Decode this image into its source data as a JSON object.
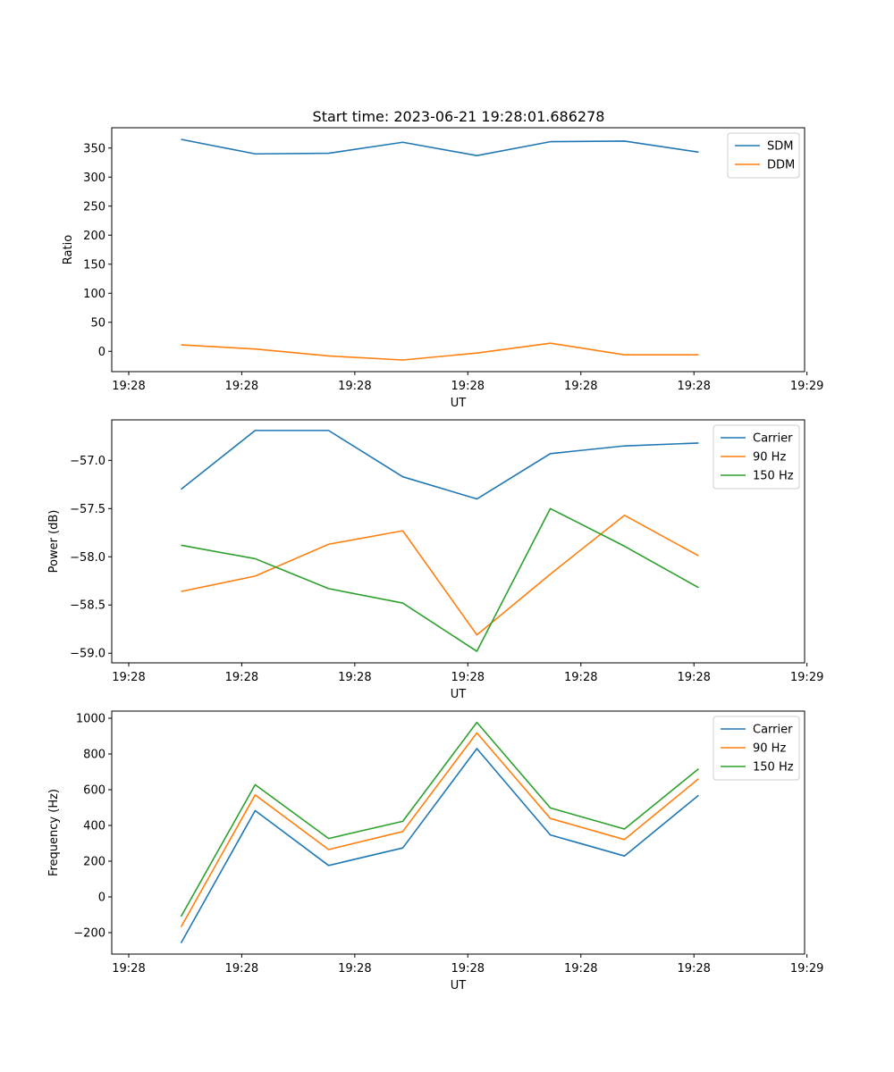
{
  "title": "Start time: 2023-06-21 19:28:01.686278",
  "colors": {
    "blue": "#1f77b4",
    "orange": "#ff7f0e",
    "green": "#2ca02c"
  },
  "chart_data": [
    {
      "type": "line",
      "title": "Start time: 2023-06-21 19:28:01.686278",
      "xlabel": "UT",
      "ylabel": "Ratio",
      "x_tick_labels": [
        "19:28",
        "19:28",
        "19:28",
        "19:28",
        "19:28",
        "19:28",
        "19:29"
      ],
      "y_ticks": [
        0,
        50,
        100,
        150,
        200,
        250,
        300,
        350
      ],
      "ylim": [
        -35,
        385
      ],
      "legend": "top-right",
      "x_positions_fraction": [
        0.1,
        0.207,
        0.313,
        0.42,
        0.527,
        0.633,
        0.74,
        0.847
      ],
      "series": [
        {
          "name": "SDM",
          "color": "#1f77b4",
          "values": [
            365,
            340,
            341,
            360,
            337,
            361,
            362,
            343
          ]
        },
        {
          "name": "DDM",
          "color": "#ff7f0e",
          "values": [
            11,
            4,
            -8,
            -15,
            -3,
            14,
            -6,
            -6
          ]
        }
      ]
    },
    {
      "type": "line",
      "xlabel": "UT",
      "ylabel": "Power (dB)",
      "x_tick_labels": [
        "19:28",
        "19:28",
        "19:28",
        "19:28",
        "19:28",
        "19:28",
        "19:29"
      ],
      "y_ticks": [
        -57.0,
        -57.5,
        -58.0,
        -58.5,
        -59.0
      ],
      "ylim": [
        -59.1,
        -56.58
      ],
      "legend": "top-right",
      "x_positions_fraction": [
        0.1,
        0.207,
        0.313,
        0.42,
        0.527,
        0.633,
        0.74,
        0.847
      ],
      "series": [
        {
          "name": "Carrier",
          "color": "#1f77b4",
          "values": [
            -57.3,
            -56.69,
            -56.69,
            -57.17,
            -57.4,
            -56.93,
            -56.85,
            -56.82
          ]
        },
        {
          "name": "90 Hz",
          "color": "#ff7f0e",
          "values": [
            -58.36,
            -58.2,
            -57.87,
            -57.73,
            -58.81,
            -58.18,
            -57.57,
            -57.99
          ]
        },
        {
          "name": "150 Hz",
          "color": "#2ca02c",
          "values": [
            -57.88,
            -58.02,
            -58.33,
            -58.48,
            -58.98,
            -57.5,
            -57.89,
            -58.32
          ]
        }
      ]
    },
    {
      "type": "line",
      "xlabel": "UT",
      "ylabel": "Frequency (Hz)",
      "x_tick_labels": [
        "19:28",
        "19:28",
        "19:28",
        "19:28",
        "19:28",
        "19:28",
        "19:29"
      ],
      "y_ticks": [
        -200,
        0,
        200,
        400,
        600,
        800,
        1000
      ],
      "ylim": [
        -320,
        1040
      ],
      "legend": "top-right",
      "x_positions_fraction": [
        0.1,
        0.207,
        0.313,
        0.42,
        0.527,
        0.633,
        0.74,
        0.847
      ],
      "series": [
        {
          "name": "Carrier",
          "color": "#1f77b4",
          "values": [
            -258,
            483,
            176,
            274,
            830,
            347,
            229,
            569
          ]
        },
        {
          "name": "90 Hz",
          "color": "#ff7f0e",
          "values": [
            -168,
            571,
            265,
            366,
            918,
            439,
            321,
            661
          ]
        },
        {
          "name": "150 Hz",
          "color": "#2ca02c",
          "values": [
            -110,
            628,
            327,
            423,
            977,
            498,
            380,
            717
          ]
        }
      ]
    }
  ]
}
